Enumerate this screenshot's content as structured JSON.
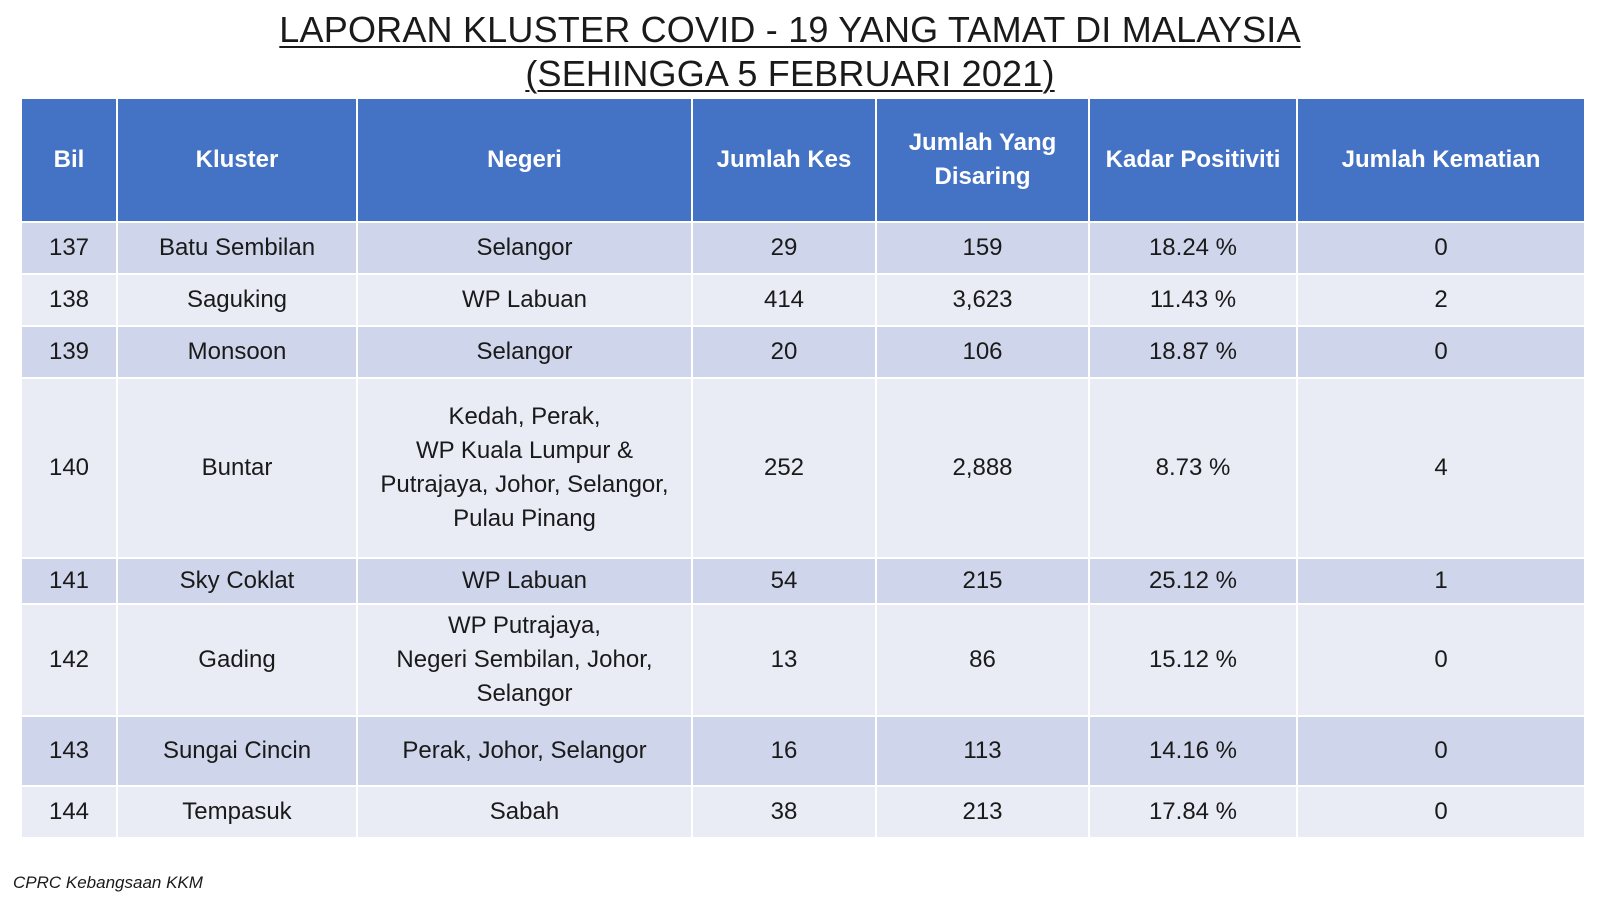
{
  "title": {
    "line1": "LAPORAN KLUSTER COVID - 19 YANG TAMAT DI MALAYSIA",
    "line2": "(SEHINGGA 5 FEBRUARI 2021)"
  },
  "table": {
    "headers": {
      "bil": "Bil",
      "kluster": "Kluster",
      "negeri": "Negeri",
      "jumlah_kes": "Jumlah Kes",
      "jumlah_disaring_1": "Jumlah Yang",
      "jumlah_disaring_2": "Disaring",
      "kadar_positiviti": "Kadar Positiviti",
      "jumlah_kematian": "Jumlah Kematian"
    },
    "rows": [
      {
        "bil": "137",
        "kluster": "Batu Sembilan",
        "negeri_lines": [
          "Selangor"
        ],
        "jumlah_kes": "29",
        "jumlah_disaring": "159",
        "kadar_positiviti": "18.24 %",
        "jumlah_kematian": "0"
      },
      {
        "bil": "138",
        "kluster": "Saguking",
        "negeri_lines": [
          "WP Labuan"
        ],
        "jumlah_kes": "414",
        "jumlah_disaring": "3,623",
        "kadar_positiviti": "11.43 %",
        "jumlah_kematian": "2"
      },
      {
        "bil": "139",
        "kluster": "Monsoon",
        "negeri_lines": [
          "Selangor"
        ],
        "jumlah_kes": "20",
        "jumlah_disaring": "106",
        "kadar_positiviti": "18.87 %",
        "jumlah_kematian": "0"
      },
      {
        "bil": "140",
        "kluster": "Buntar",
        "negeri_lines": [
          "Kedah, Perak,",
          "WP Kuala Lumpur &",
          "Putrajaya, Johor, Selangor,",
          "Pulau Pinang"
        ],
        "jumlah_kes": "252",
        "jumlah_disaring": "2,888",
        "kadar_positiviti": "8.73 %",
        "jumlah_kematian": "4"
      },
      {
        "bil": "141",
        "kluster": "Sky Coklat",
        "negeri_lines": [
          "WP Labuan"
        ],
        "jumlah_kes": "54",
        "jumlah_disaring": "215",
        "kadar_positiviti": "25.12 %",
        "jumlah_kematian": "1"
      },
      {
        "bil": "142",
        "kluster": "Gading",
        "negeri_lines": [
          "WP Putrajaya,",
          "Negeri Sembilan, Johor,",
          "Selangor"
        ],
        "jumlah_kes": "13",
        "jumlah_disaring": "86",
        "kadar_positiviti": "15.12 %",
        "jumlah_kematian": "0"
      },
      {
        "bil": "143",
        "kluster": "Sungai Cincin",
        "negeri_lines": [
          "Perak, Johor, Selangor"
        ],
        "jumlah_kes": "16",
        "jumlah_disaring": "113",
        "kadar_positiviti": "14.16 %",
        "jumlah_kematian": "0"
      },
      {
        "bil": "144",
        "kluster": "Tempasuk",
        "negeri_lines": [
          "Sabah"
        ],
        "jumlah_kes": "38",
        "jumlah_disaring": "213",
        "kadar_positiviti": "17.84 %",
        "jumlah_kematian": "0"
      }
    ]
  },
  "source": "CPRC Kebangsaan KKM",
  "colors": {
    "header_bg": "#4472c4",
    "row_odd_bg": "#cfd5ea",
    "row_even_bg": "#e9ebf5"
  }
}
